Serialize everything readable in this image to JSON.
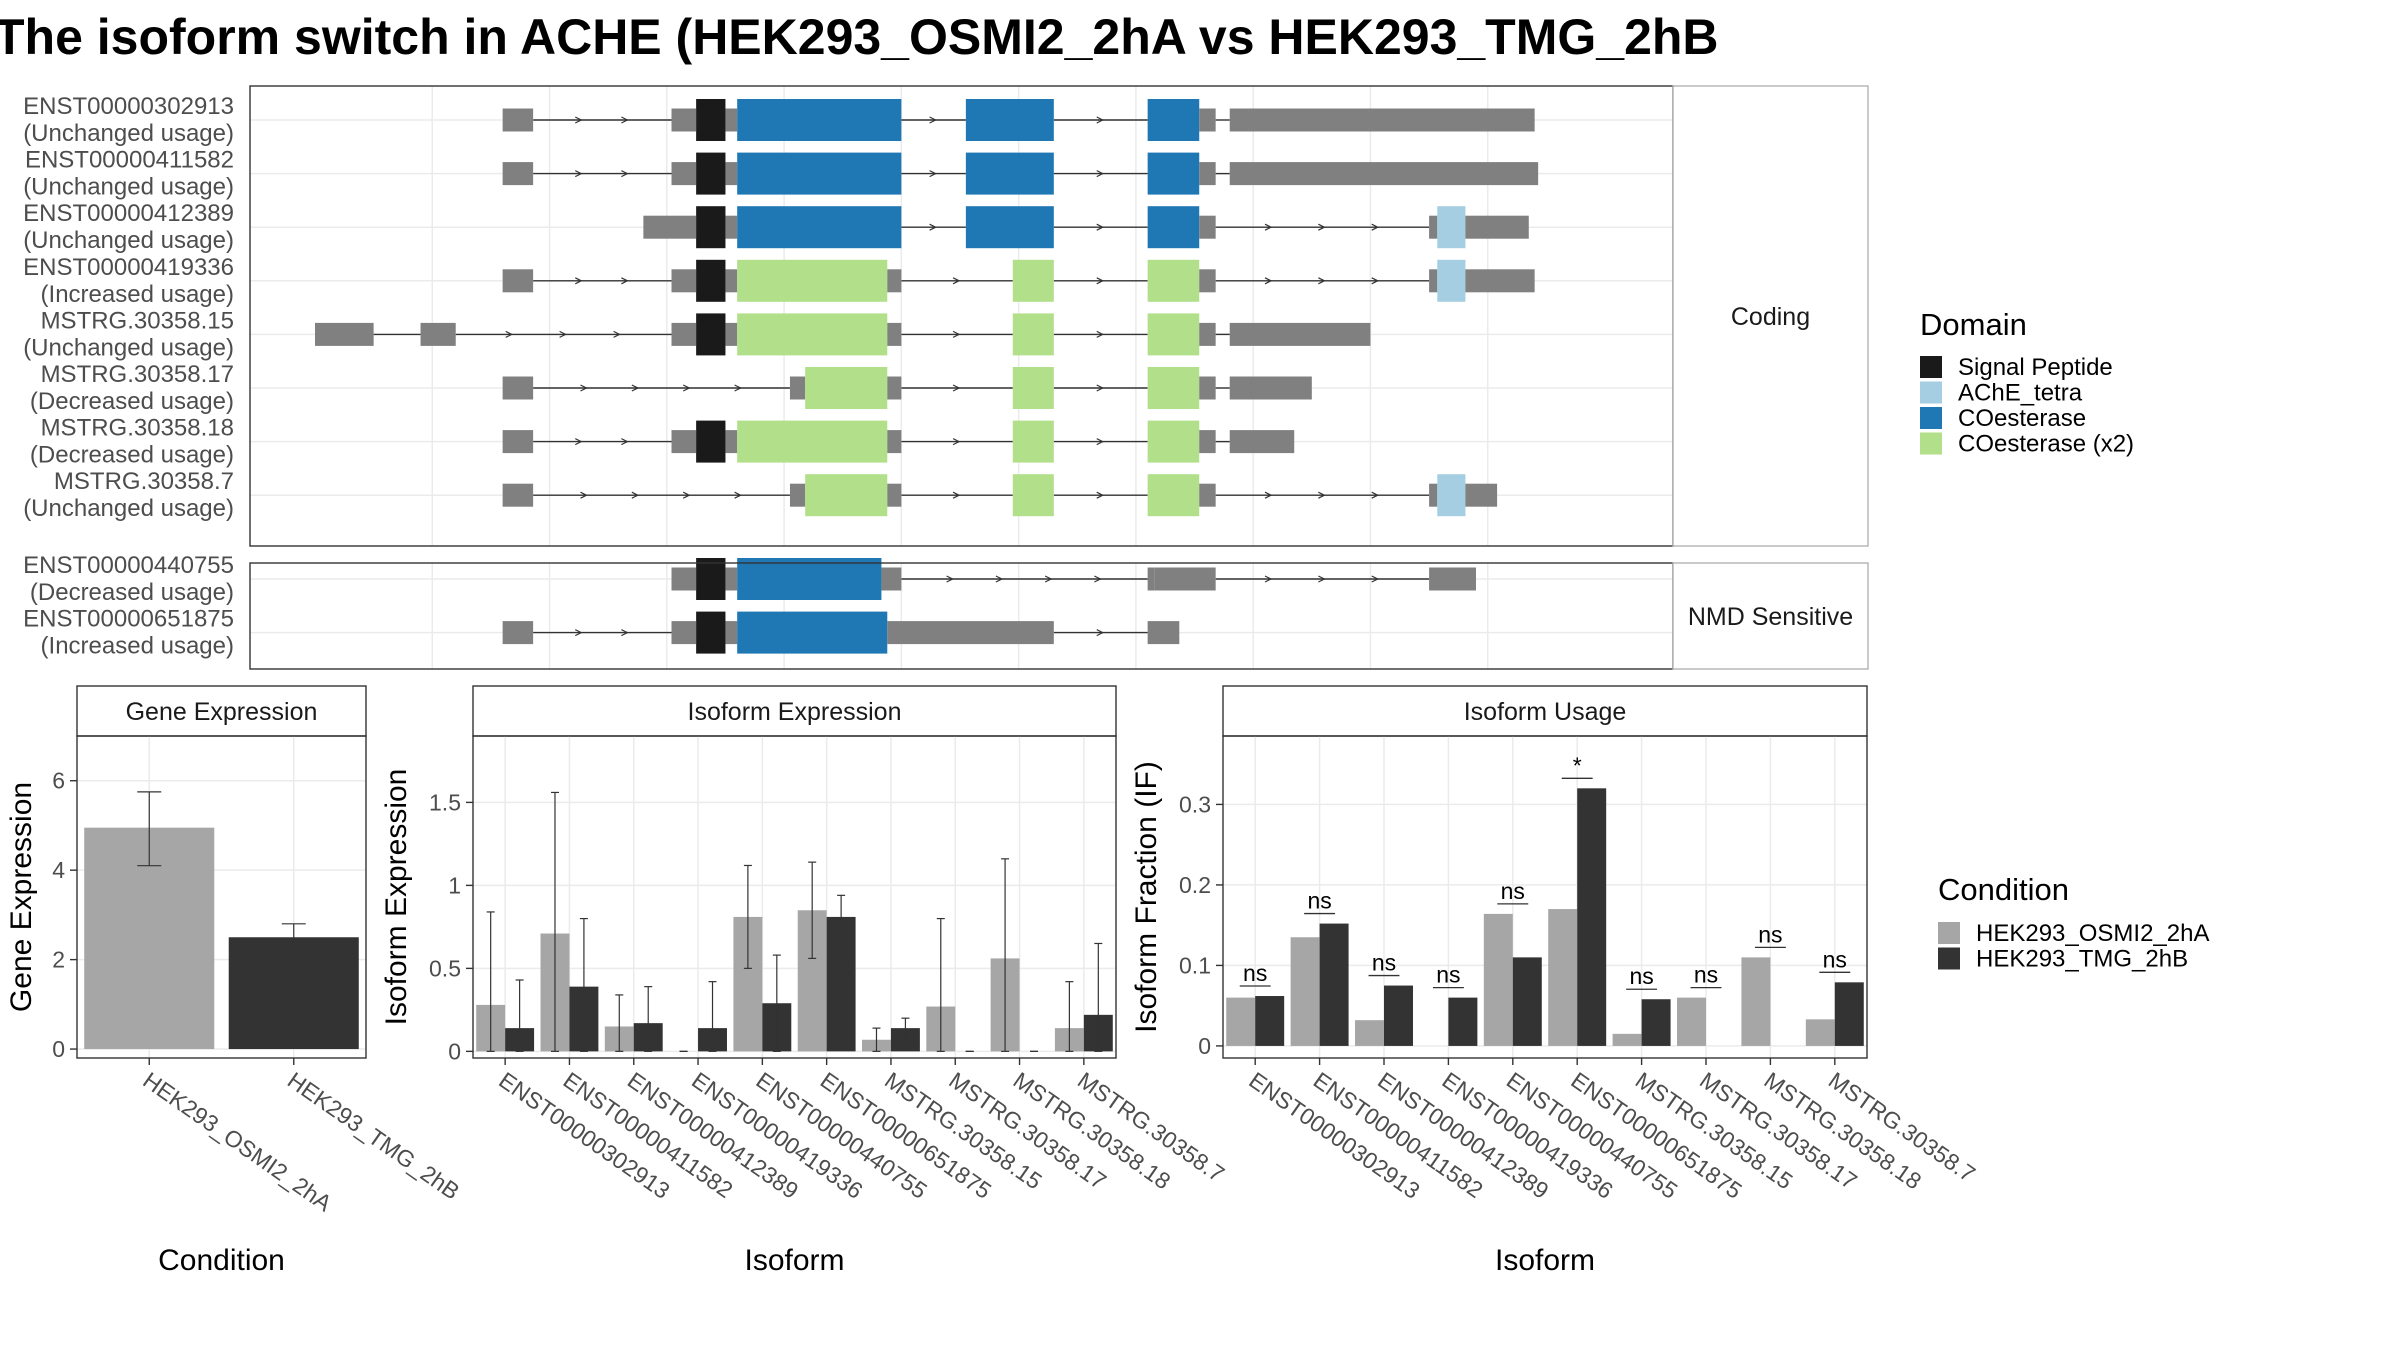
{
  "title": "The isoform switch in ACHE (HEK293_OSMI2_2hA vs HEK293_TMG_2hB",
  "colors": {
    "signal_peptide": "#1a1a1a",
    "ache_tetra": "#a6cee3",
    "coesterase": "#1f78b4",
    "coesterase_x2": "#b2df8a",
    "exon_grey": "#808080",
    "condition_a": "#a6a6a6",
    "condition_b": "#333333"
  },
  "structure": {
    "genome_range": [
      0,
      1100
    ],
    "panels": [
      {
        "label": "Coding",
        "transcripts": [
          {
            "id": "ENST00000302913",
            "usage": "(Unchanged usage)",
            "segments": [
              [
                160,
                186,
                "utr"
              ],
              [
                304,
                325,
                "utr"
              ],
              [
                325,
                350,
                "signal"
              ],
              [
                350,
                360,
                "utr"
              ],
              [
                360,
                500,
                "coesterase"
              ],
              [
                555,
                630,
                "coesterase"
              ],
              [
                710,
                754,
                "coesterase"
              ],
              [
                754,
                768,
                "utr"
              ],
              [
                780,
                1040,
                "utr"
              ]
            ]
          },
          {
            "id": "ENST00000411582",
            "usage": "(Unchanged usage)",
            "segments": [
              [
                160,
                186,
                "utr"
              ],
              [
                304,
                325,
                "utr"
              ],
              [
                325,
                350,
                "signal"
              ],
              [
                350,
                360,
                "utr"
              ],
              [
                360,
                500,
                "coesterase"
              ],
              [
                555,
                630,
                "coesterase"
              ],
              [
                710,
                754,
                "coesterase"
              ],
              [
                754,
                768,
                "utr"
              ],
              [
                780,
                1043,
                "utr"
              ]
            ]
          },
          {
            "id": "ENST00000412389",
            "usage": "(Unchanged usage)",
            "segments": [
              [
                280,
                325,
                "utr"
              ],
              [
                325,
                350,
                "signal"
              ],
              [
                350,
                360,
                "utr"
              ],
              [
                360,
                500,
                "coesterase"
              ],
              [
                555,
                630,
                "coesterase"
              ],
              [
                710,
                754,
                "coesterase"
              ],
              [
                754,
                768,
                "utr"
              ],
              [
                950,
                957,
                "utr"
              ],
              [
                957,
                981,
                "tetra"
              ],
              [
                981,
                1035,
                "utr"
              ]
            ]
          },
          {
            "id": "ENST00000419336",
            "usage": "(Increased usage)",
            "segments": [
              [
                160,
                186,
                "utr"
              ],
              [
                304,
                325,
                "utr"
              ],
              [
                325,
                350,
                "signal"
              ],
              [
                350,
                360,
                "utr"
              ],
              [
                360,
                488,
                "coesterase_x2"
              ],
              [
                488,
                500,
                "utr"
              ],
              [
                595,
                630,
                "coesterase_x2"
              ],
              [
                710,
                754,
                "coesterase_x2"
              ],
              [
                754,
                768,
                "utr"
              ],
              [
                950,
                957,
                "utr"
              ],
              [
                957,
                981,
                "tetra"
              ],
              [
                981,
                1040,
                "utr"
              ]
            ]
          },
          {
            "id": "MSTRG.30358.15",
            "usage": "(Unchanged usage)",
            "segments": [
              [
                0,
                50,
                "utr"
              ],
              [
                90,
                120,
                "utr"
              ],
              [
                304,
                325,
                "utr"
              ],
              [
                325,
                350,
                "signal"
              ],
              [
                350,
                360,
                "utr"
              ],
              [
                360,
                488,
                "coesterase_x2"
              ],
              [
                488,
                500,
                "utr"
              ],
              [
                595,
                630,
                "coesterase_x2"
              ],
              [
                710,
                754,
                "coesterase_x2"
              ],
              [
                754,
                768,
                "utr"
              ],
              [
                780,
                900,
                "utr"
              ]
            ]
          },
          {
            "id": "MSTRG.30358.17",
            "usage": "(Decreased usage)",
            "segments": [
              [
                160,
                186,
                "utr"
              ],
              [
                405,
                418,
                "utr"
              ],
              [
                418,
                488,
                "coesterase_x2"
              ],
              [
                488,
                500,
                "utr"
              ],
              [
                595,
                630,
                "coesterase_x2"
              ],
              [
                710,
                754,
                "coesterase_x2"
              ],
              [
                754,
                768,
                "utr"
              ],
              [
                780,
                850,
                "utr"
              ]
            ]
          },
          {
            "id": "MSTRG.30358.18",
            "usage": "(Decreased usage)",
            "segments": [
              [
                160,
                186,
                "utr"
              ],
              [
                304,
                325,
                "utr"
              ],
              [
                325,
                350,
                "signal"
              ],
              [
                350,
                360,
                "utr"
              ],
              [
                360,
                488,
                "coesterase_x2"
              ],
              [
                488,
                500,
                "utr"
              ],
              [
                595,
                630,
                "coesterase_x2"
              ],
              [
                710,
                754,
                "coesterase_x2"
              ],
              [
                754,
                768,
                "utr"
              ],
              [
                780,
                835,
                "utr"
              ]
            ]
          },
          {
            "id": "MSTRG.30358.7",
            "usage": "(Unchanged usage)",
            "segments": [
              [
                160,
                186,
                "utr"
              ],
              [
                405,
                418,
                "utr"
              ],
              [
                418,
                488,
                "coesterase_x2"
              ],
              [
                488,
                500,
                "utr"
              ],
              [
                595,
                630,
                "coesterase_x2"
              ],
              [
                710,
                754,
                "coesterase_x2"
              ],
              [
                754,
                768,
                "utr"
              ],
              [
                950,
                957,
                "utr"
              ],
              [
                957,
                981,
                "tetra"
              ],
              [
                981,
                1008,
                "utr"
              ]
            ]
          }
        ]
      },
      {
        "label": "NMD Sensitive",
        "transcripts": [
          {
            "id": "ENST00000440755",
            "usage": "(Decreased usage)",
            "segments": [
              [
                304,
                325,
                "utr"
              ],
              [
                325,
                350,
                "signal"
              ],
              [
                350,
                360,
                "utr"
              ],
              [
                360,
                483,
                "coesterase"
              ],
              [
                483,
                500,
                "utr"
              ],
              [
                710,
                716,
                "utr"
              ],
              [
                716,
                768,
                "utr"
              ],
              [
                950,
                990,
                "utr"
              ]
            ]
          },
          {
            "id": "ENST00000651875",
            "usage": "(Increased usage)",
            "segments": [
              [
                160,
                186,
                "utr"
              ],
              [
                304,
                325,
                "utr"
              ],
              [
                325,
                350,
                "signal"
              ],
              [
                350,
                360,
                "utr"
              ],
              [
                360,
                488,
                "coesterase"
              ],
              [
                488,
                630,
                "utr"
              ],
              [
                710,
                737,
                "utr"
              ]
            ]
          }
        ]
      }
    ]
  },
  "domain_legend": {
    "title": "Domain",
    "items": [
      {
        "label": "Signal Peptide",
        "color": "#1a1a1a"
      },
      {
        "label": "AChE_tetra",
        "color": "#a6cee3"
      },
      {
        "label": "COesterase",
        "color": "#1f78b4"
      },
      {
        "label": "COesterase (x2)",
        "color": "#b2df8a"
      }
    ]
  },
  "condition_legend": {
    "title": "Condition",
    "items": [
      {
        "label": "HEK293_OSMI2_2hA",
        "color": "#a6a6a6"
      },
      {
        "label": "HEK293_TMG_2hB",
        "color": "#333333"
      }
    ]
  },
  "chart_data": [
    {
      "type": "bar",
      "title": "Gene Expression",
      "xlabel": "Condition",
      "ylabel": "Gene Expression",
      "ylim": [
        -0.2,
        7
      ],
      "yticks": [
        0,
        2,
        4,
        6
      ],
      "categories": [
        "HEK293_OSMI2_2hA",
        "HEK293_TMG_2hB"
      ],
      "values": [
        4.95,
        2.5
      ],
      "errors": [
        [
          4.1,
          5.75
        ],
        [
          2.25,
          2.8
        ]
      ]
    },
    {
      "type": "bar",
      "title": "Isoform Expression",
      "xlabel": "Isoform",
      "ylabel": "Isoform Expression",
      "ylim": [
        -0.04,
        1.9
      ],
      "yticks": [
        0.0,
        0.5,
        1.0,
        1.5
      ],
      "categories": [
        "ENST00000302913",
        "ENST00000411582",
        "ENST00000412389",
        "ENST00000419336",
        "ENST00000440755",
        "ENST00000651875",
        "MSTRG.30358.15",
        "MSTRG.30358.17",
        "MSTRG.30358.18",
        "MSTRG.30358.7"
      ],
      "series": [
        {
          "name": "HEK293_OSMI2_2hA",
          "values": [
            0.28,
            0.71,
            0.15,
            0.0,
            0.81,
            0.85,
            0.07,
            0.27,
            0.56,
            0.14
          ],
          "errors": [
            [
              0,
              0.84
            ],
            [
              0,
              1.56
            ],
            [
              0,
              0.34
            ],
            [
              0,
              0
            ],
            [
              0.5,
              1.12
            ],
            [
              0.56,
              1.14
            ],
            [
              0,
              0.14
            ],
            [
              0,
              0.8
            ],
            [
              0,
              1.16
            ],
            [
              0,
              0.42
            ]
          ]
        },
        {
          "name": "HEK293_TMG_2hB",
          "values": [
            0.14,
            0.39,
            0.17,
            0.14,
            0.29,
            0.81,
            0.14,
            0.0,
            0.0,
            0.22
          ],
          "errors": [
            [
              0,
              0.43
            ],
            [
              0,
              0.8
            ],
            [
              0,
              0.39
            ],
            [
              0,
              0.42
            ],
            [
              0,
              0.58
            ],
            [
              0.68,
              0.94
            ],
            [
              0.08,
              0.2
            ],
            [
              0,
              0
            ],
            [
              0,
              0
            ],
            [
              0,
              0.65
            ]
          ]
        }
      ]
    },
    {
      "type": "bar",
      "title": "Isoform Usage",
      "xlabel": "Isoform",
      "ylabel": "Isoform Fraction (IF)",
      "ylim": [
        -0.015,
        0.385
      ],
      "yticks": [
        0.0,
        0.1,
        0.2,
        0.3
      ],
      "categories": [
        "ENST00000302913",
        "ENST00000411582",
        "ENST00000412389",
        "ENST00000419336",
        "ENST00000440755",
        "ENST00000651875",
        "MSTRG.30358.15",
        "MSTRG.30358.17",
        "MSTRG.30358.18",
        "MSTRG.30358.7"
      ],
      "series": [
        {
          "name": "HEK293_OSMI2_2hA",
          "values": [
            0.06,
            0.135,
            0.032,
            0.0,
            0.164,
            0.17,
            0.015,
            0.06,
            0.11,
            0.033
          ]
        },
        {
          "name": "HEK293_TMG_2hB",
          "values": [
            0.062,
            0.152,
            0.075,
            0.06,
            0.11,
            0.32,
            0.058,
            0.0,
            0.0,
            0.079
          ]
        }
      ],
      "significance": [
        "ns",
        "ns",
        "ns",
        "ns",
        "ns",
        "*",
        "ns",
        "ns",
        "ns",
        "ns"
      ]
    }
  ]
}
